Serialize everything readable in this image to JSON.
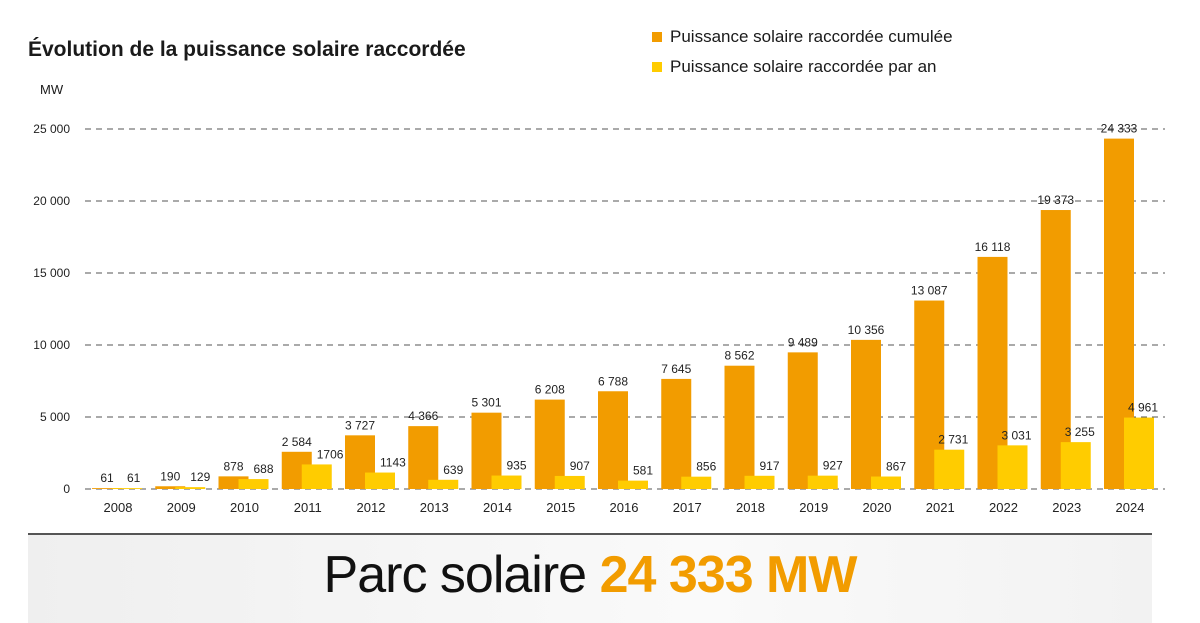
{
  "chart_data": {
    "type": "bar",
    "title": "Évolution de la puissance solaire raccordée",
    "ylabel": "MW",
    "xlabel": "",
    "ylim": [
      0,
      25000
    ],
    "yticks": [
      0,
      5000,
      10000,
      15000,
      20000,
      25000
    ],
    "ytick_labels": [
      "0",
      "5 000",
      "10 000",
      "15 000",
      "20 000",
      "25 000"
    ],
    "grid": true,
    "legend_placement": "top-right",
    "categories": [
      "2008",
      "2009",
      "2010",
      "2011",
      "2012",
      "2013",
      "2014",
      "2015",
      "2016",
      "2017",
      "2018",
      "2019",
      "2020",
      "2021",
      "2022",
      "2023",
      "2024"
    ],
    "series": [
      {
        "name": "Puissance solaire raccordée cumulée",
        "color": "#f29c00",
        "values": [
          61,
          190,
          878,
          2584,
          3727,
          4366,
          5301,
          6208,
          6788,
          7645,
          8562,
          9489,
          10356,
          13087,
          16118,
          19373,
          24333
        ],
        "labels": [
          "61",
          "190",
          "878",
          "2 584",
          "3 727",
          "4 366",
          "5 301",
          "6 208",
          "6 788",
          "7 645",
          "8 562",
          "9 489",
          "10 356",
          "13 087",
          "16 118",
          "19 373",
          "24 333"
        ]
      },
      {
        "name": "Puissance solaire raccordée par an",
        "color": "#ffcc00",
        "values": [
          61,
          129,
          688,
          1706,
          1143,
          639,
          935,
          907,
          581,
          856,
          917,
          927,
          867,
          2731,
          3031,
          3255,
          4961
        ],
        "labels": [
          "61",
          "129",
          "688",
          "1706",
          "1143",
          "639",
          "935",
          "907",
          "581",
          "856",
          "917",
          "927",
          "867",
          "2 731",
          "3 031",
          "3 255",
          "4 961"
        ]
      }
    ]
  },
  "footer": {
    "label": "Parc solaire",
    "value": "24 333 MW"
  }
}
